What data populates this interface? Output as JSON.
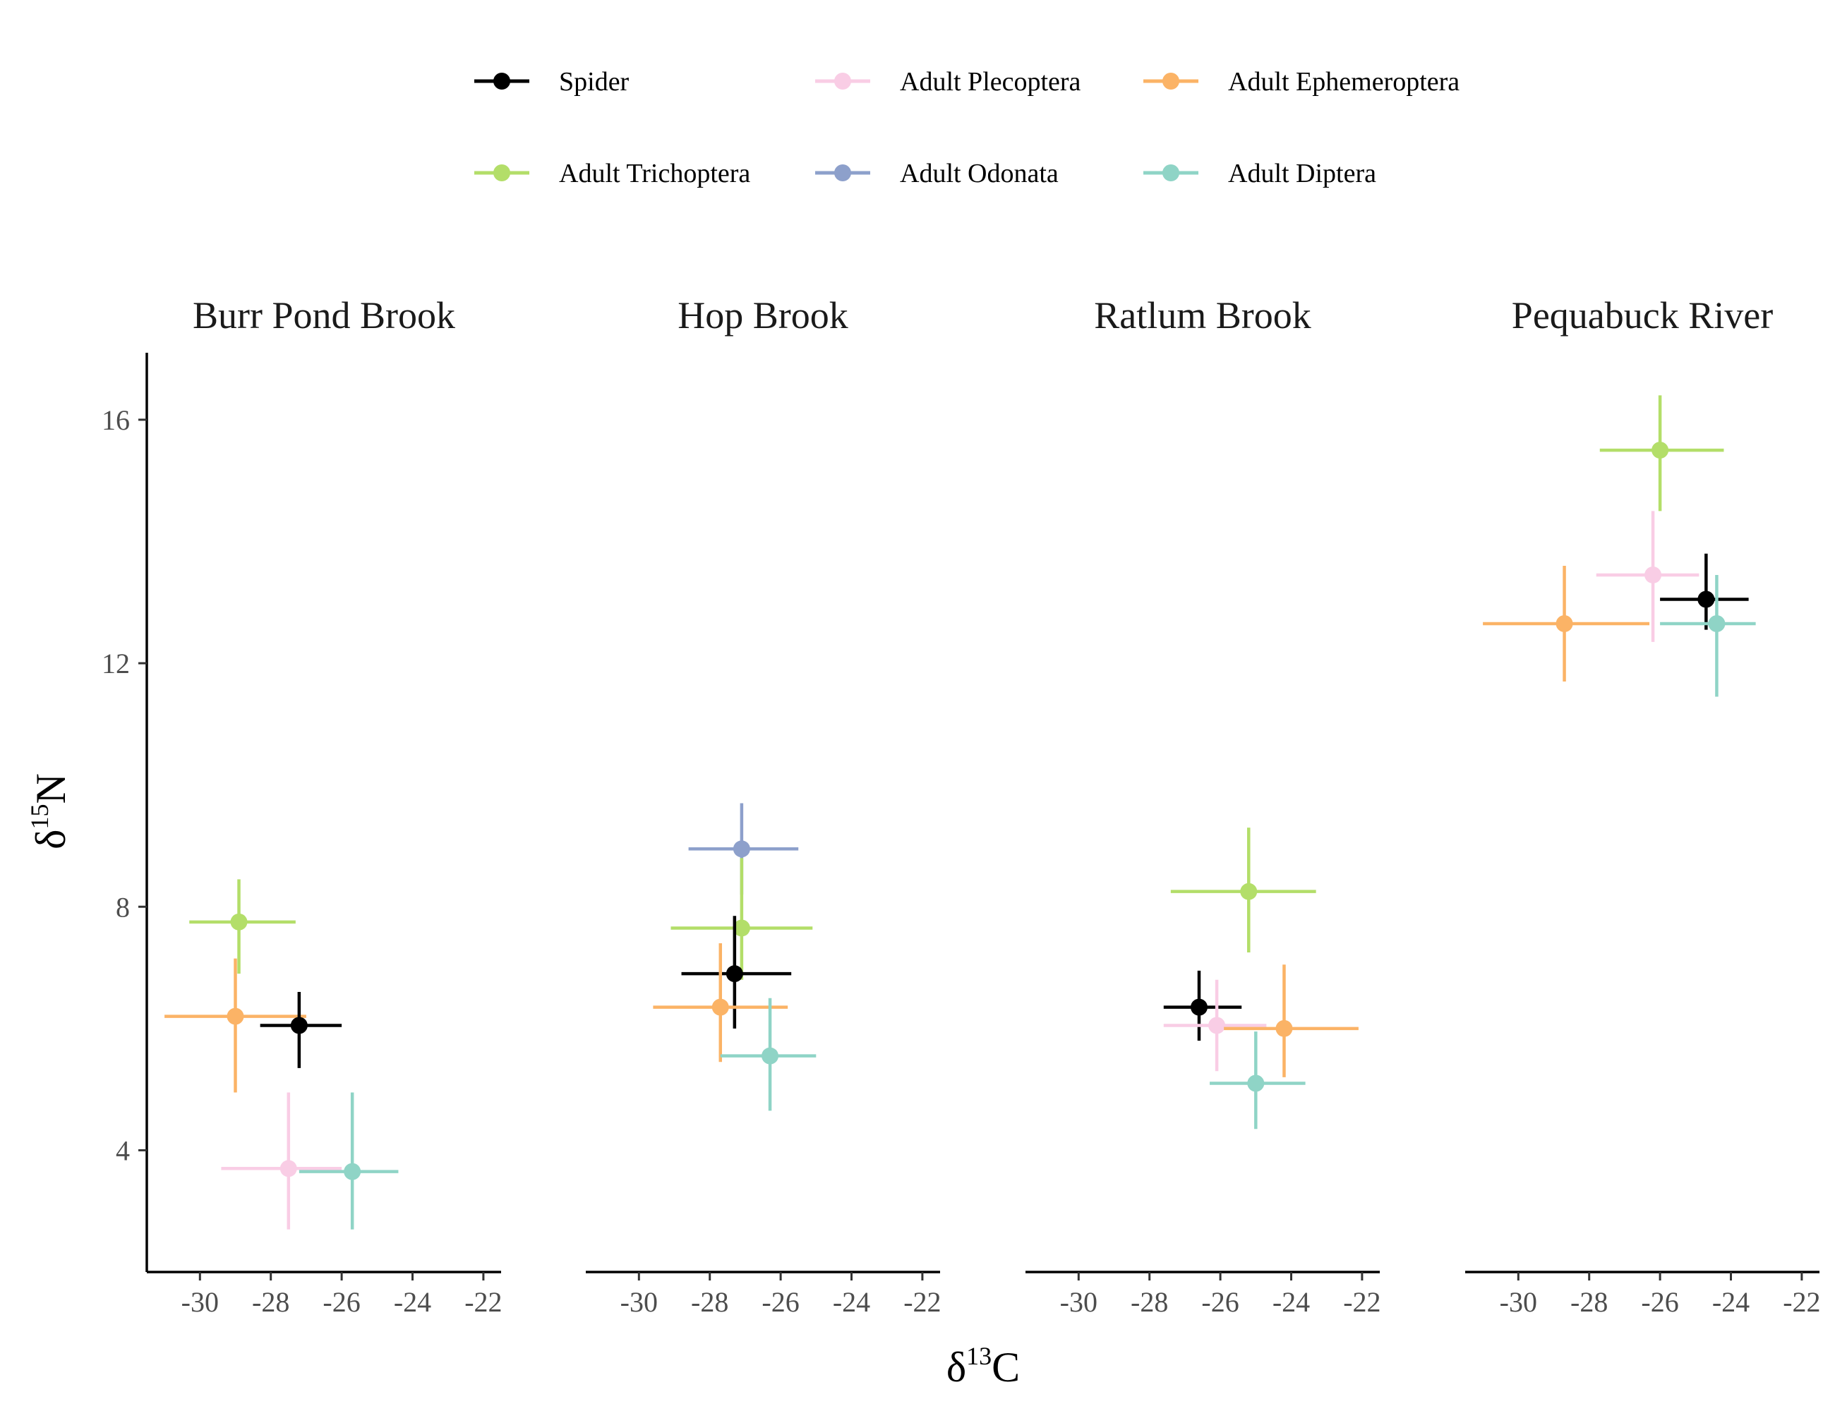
{
  "chart_data": {
    "type": "scatter",
    "xlabel_base": "δ",
    "xlabel_sup": "13",
    "xlabel_elem": "C",
    "ylabel_base": "δ",
    "ylabel_sup": "15",
    "ylabel_elem": "N",
    "xlim": [
      -31.5,
      -21.5
    ],
    "ylim": [
      2,
      17.1
    ],
    "x_ticks": [
      -30,
      -28,
      -26,
      -24,
      -22
    ],
    "y_ticks": [
      4,
      8,
      12,
      16
    ],
    "legend_position": "top",
    "series": [
      {
        "name": "Spider",
        "color": "#000000"
      },
      {
        "name": "Adult Plecoptera",
        "color": "#F9CDE5"
      },
      {
        "name": "Adult Ephemeroptera",
        "color": "#FBB366"
      },
      {
        "name": "Adult Trichoptera",
        "color": "#B3DE69"
      },
      {
        "name": "Adult Odonata",
        "color": "#8DA0CB"
      },
      {
        "name": "Adult Diptera",
        "color": "#8FD4C6"
      }
    ],
    "panels": [
      {
        "title": "Burr Pond Brook",
        "points": [
          {
            "series": "Adult Trichoptera",
            "x": -28.9,
            "y": 7.75,
            "xmin": -30.3,
            "xmax": -27.3,
            "ymin": 6.9,
            "ymax": 8.45
          },
          {
            "series": "Adult Ephemeroptera",
            "x": -29.0,
            "y": 6.2,
            "xmin": -31.0,
            "xmax": -27.0,
            "ymin": 4.95,
            "ymax": 7.15
          },
          {
            "series": "Spider",
            "x": -27.2,
            "y": 6.05,
            "xmin": -28.3,
            "xmax": -26.0,
            "ymin": 5.35,
            "ymax": 6.6
          },
          {
            "series": "Adult Plecoptera",
            "x": -27.5,
            "y": 3.7,
            "xmin": -29.4,
            "xmax": -26.0,
            "ymin": 2.7,
            "ymax": 4.95
          },
          {
            "series": "Adult Diptera",
            "x": -25.7,
            "y": 3.65,
            "xmin": -27.2,
            "xmax": -24.4,
            "ymin": 2.7,
            "ymax": 4.95
          }
        ]
      },
      {
        "title": "Hop Brook",
        "points": [
          {
            "series": "Adult Odonata",
            "x": -27.1,
            "y": 8.95,
            "xmin": -28.6,
            "xmax": -25.5,
            "ymin": 8.2,
            "ymax": 9.7
          },
          {
            "series": "Adult Trichoptera",
            "x": -27.1,
            "y": 7.65,
            "xmin": -29.1,
            "xmax": -25.1,
            "ymin": 6.8,
            "ymax": 8.8
          },
          {
            "series": "Spider",
            "x": -27.3,
            "y": 6.9,
            "xmin": -28.8,
            "xmax": -25.7,
            "ymin": 6.0,
            "ymax": 7.85
          },
          {
            "series": "Adult Ephemeroptera",
            "x": -27.7,
            "y": 6.35,
            "xmin": -29.6,
            "xmax": -25.8,
            "ymin": 5.45,
            "ymax": 7.4
          },
          {
            "series": "Adult Diptera",
            "x": -26.3,
            "y": 5.55,
            "xmin": -27.7,
            "xmax": -25.0,
            "ymin": 4.65,
            "ymax": 6.5
          }
        ]
      },
      {
        "title": "Ratlum Brook",
        "points": [
          {
            "series": "Adult Trichoptera",
            "x": -25.2,
            "y": 8.25,
            "xmin": -27.4,
            "xmax": -23.3,
            "ymin": 7.25,
            "ymax": 9.3
          },
          {
            "series": "Spider",
            "x": -26.6,
            "y": 6.35,
            "xmin": -27.6,
            "xmax": -25.4,
            "ymin": 5.8,
            "ymax": 6.95
          },
          {
            "series": "Adult Plecoptera",
            "x": -26.1,
            "y": 6.05,
            "xmin": -27.6,
            "xmax": -24.7,
            "ymin": 5.3,
            "ymax": 6.8
          },
          {
            "series": "Adult Ephemeroptera",
            "x": -24.2,
            "y": 6.0,
            "xmin": -25.9,
            "xmax": -22.1,
            "ymin": 5.2,
            "ymax": 7.05
          },
          {
            "series": "Adult Diptera",
            "x": -25.0,
            "y": 5.1,
            "xmin": -26.3,
            "xmax": -23.6,
            "ymin": 4.35,
            "ymax": 5.95
          }
        ]
      },
      {
        "title": "Pequabuck River",
        "points": [
          {
            "series": "Adult Trichoptera",
            "x": -26.0,
            "y": 15.5,
            "xmin": -27.7,
            "xmax": -24.2,
            "ymin": 14.5,
            "ymax": 16.4
          },
          {
            "series": "Adult Plecoptera",
            "x": -26.2,
            "y": 13.45,
            "xmin": -27.8,
            "xmax": -24.9,
            "ymin": 12.35,
            "ymax": 14.5
          },
          {
            "series": "Spider",
            "x": -24.7,
            "y": 13.05,
            "xmin": -26.0,
            "xmax": -23.5,
            "ymin": 12.55,
            "ymax": 13.8
          },
          {
            "series": "Adult Diptera",
            "x": -24.4,
            "y": 12.65,
            "xmin": -26.0,
            "xmax": -23.3,
            "ymin": 11.45,
            "ymax": 13.45
          },
          {
            "series": "Adult Ephemeroptera",
            "x": -28.7,
            "y": 12.65,
            "xmin": -31.0,
            "xmax": -26.3,
            "ymin": 11.7,
            "ymax": 13.6
          }
        ]
      }
    ]
  }
}
